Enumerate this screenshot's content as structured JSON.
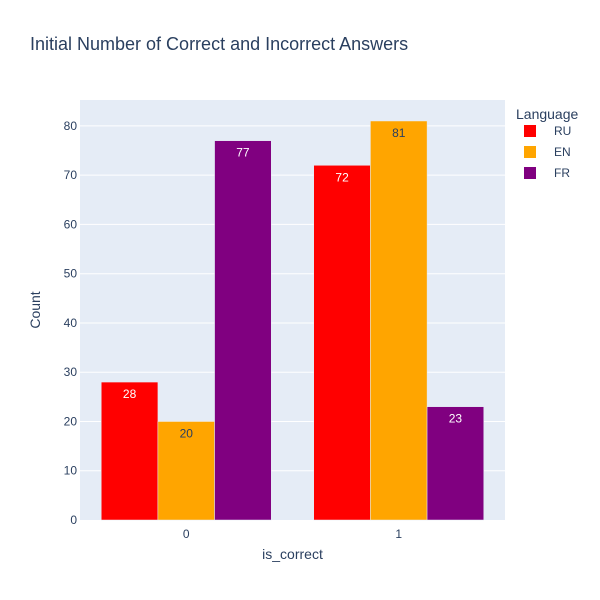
{
  "chart_data": {
    "type": "bar",
    "title": "Initial Number of Correct and Incorrect Answers",
    "xlabel": "is_correct",
    "ylabel": "Count",
    "categories": [
      "0",
      "1"
    ],
    "yticks": [
      0,
      10,
      20,
      30,
      40,
      50,
      60,
      70,
      80
    ],
    "ylim": [
      0,
      85.26
    ],
    "grid": true,
    "legend_title": "Language",
    "legend_position": "right",
    "series": [
      {
        "name": "RU",
        "color": "#ff0000",
        "values": [
          28,
          72
        ]
      },
      {
        "name": "EN",
        "color": "#ffa500",
        "values": [
          20,
          81
        ]
      },
      {
        "name": "FR",
        "color": "#800080",
        "values": [
          77,
          23
        ]
      }
    ]
  }
}
